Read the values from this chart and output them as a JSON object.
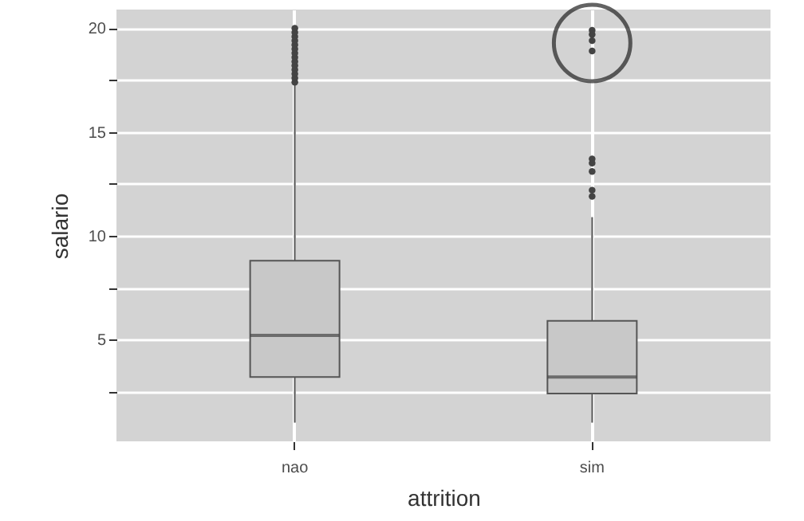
{
  "chart_data": {
    "type": "box",
    "xlabel": "attrition",
    "ylabel": "salario",
    "categories": [
      "nao",
      "sim"
    ],
    "boxes": [
      {
        "low": 1.0,
        "q1": 3.2,
        "median": 5.2,
        "q3": 8.8,
        "high": 17.3,
        "outliers": [
          17.4,
          17.6,
          17.8,
          18.0,
          18.2,
          18.4,
          18.6,
          18.8,
          19.0,
          19.2,
          19.4,
          19.6,
          19.8,
          20.0
        ]
      },
      {
        "low": 1.0,
        "q1": 2.4,
        "median": 3.2,
        "q3": 5.9,
        "high": 10.9,
        "outliers": [
          11.9,
          12.2,
          13.1,
          13.5,
          13.7,
          18.9,
          19.4,
          19.7,
          19.9
        ]
      }
    ],
    "color": "#c8c8c8",
    "ylim": [
      0.1,
      20.9
    ],
    "yticks": [
      {
        "value": 2.5,
        "label": null
      },
      5,
      {
        "value": 7.5,
        "label": null
      },
      10,
      {
        "value": 12.5,
        "label": null
      },
      15,
      {
        "value": 17.5,
        "label": null
      },
      20
    ],
    "grid": true
  }
}
